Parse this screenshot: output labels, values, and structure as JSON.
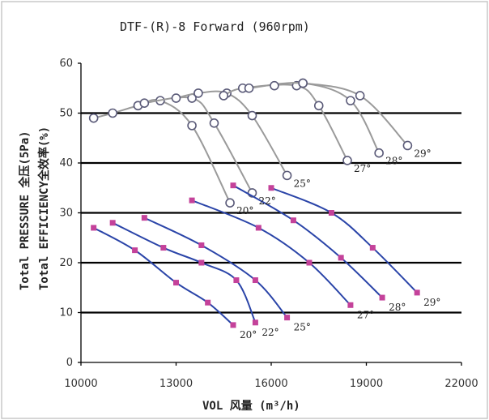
{
  "chart_data": {
    "type": "line",
    "title": "DTF-(R)-8 Forward (960rpm)",
    "xlabel": "VOL 风量 (m³/h)",
    "ylabel_line1": "Total PRESSURE 全压(5Pa)",
    "ylabel_line2": "Total EFFICIENCY全效率(%)",
    "xlim": [
      10000,
      22000
    ],
    "ylim": [
      0,
      60
    ],
    "xticks": [
      "10000",
      "13000",
      "16000",
      "19000",
      "22000"
    ],
    "yticks": [
      "0",
      "10",
      "20",
      "30",
      "40",
      "50",
      "60"
    ],
    "grid": "horizontal",
    "pressure_series": [
      {
        "name": "20°",
        "x": [
          10400,
          11700,
          13000,
          14000,
          14800
        ],
        "y": [
          27,
          22.5,
          16,
          12,
          7.5
        ]
      },
      {
        "name": "22°",
        "x": [
          11000,
          12600,
          13800,
          14900,
          15500
        ],
        "y": [
          28,
          23,
          20,
          16.5,
          8
        ]
      },
      {
        "name": "25°",
        "x": [
          12000,
          13800,
          15500,
          16500
        ],
        "y": [
          29,
          23.5,
          16.5,
          9
        ]
      },
      {
        "name": "27°",
        "x": [
          13500,
          15600,
          17200,
          18500
        ],
        "y": [
          32.5,
          27,
          20,
          11.5
        ]
      },
      {
        "name": "28°",
        "x": [
          14800,
          16700,
          18200,
          19500
        ],
        "y": [
          35.5,
          28.5,
          21,
          13
        ]
      },
      {
        "name": "29°",
        "x": [
          16000,
          17900,
          19200,
          20600
        ],
        "y": [
          35,
          30,
          23,
          14
        ]
      }
    ],
    "efficiency_series": [
      {
        "name": "20°",
        "x": [
          10400,
          11000,
          11800,
          12500,
          13500,
          14700
        ],
        "y": [
          49,
          50,
          51.5,
          52.5,
          47.5,
          32
        ]
      },
      {
        "name": "22°",
        "x": [
          11800,
          12000,
          13500,
          14200,
          15400
        ],
        "y": [
          51.5,
          52,
          53,
          48,
          34
        ]
      },
      {
        "name": "25°",
        "x": [
          13000,
          13700,
          14600,
          15400,
          16500
        ],
        "y": [
          53,
          54,
          54,
          49.5,
          37.5
        ]
      },
      {
        "name": "27°",
        "x": [
          14500,
          15100,
          16800,
          17500,
          18400
        ],
        "y": [
          53.5,
          55,
          55.5,
          51.5,
          40.5
        ]
      },
      {
        "name": "28°",
        "x": [
          15300,
          17000,
          18500,
          19400
        ],
        "y": [
          55,
          56,
          52.5,
          42
        ]
      },
      {
        "name": "29°",
        "x": [
          16100,
          17000,
          18800,
          20300
        ],
        "y": [
          55.5,
          56,
          53.5,
          43.5
        ]
      }
    ]
  }
}
